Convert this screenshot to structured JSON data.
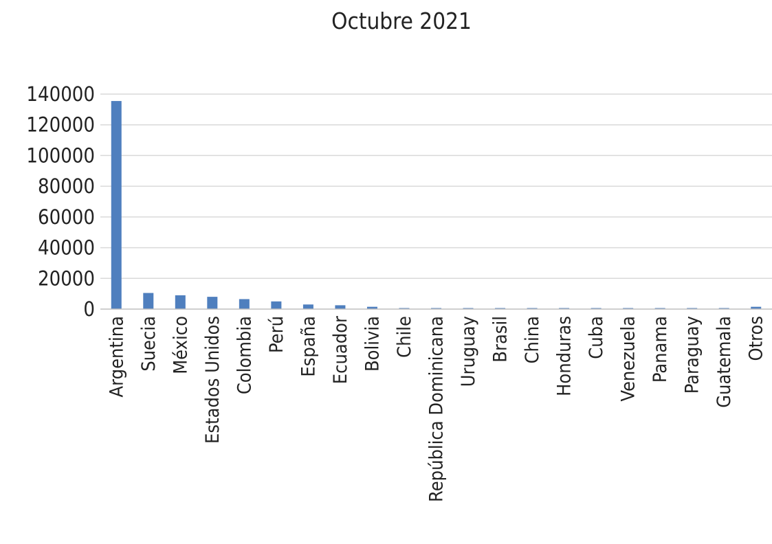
{
  "chart_data": {
    "type": "bar",
    "title": "Octubre 2021",
    "xlabel": "",
    "ylabel": "",
    "ylim": [
      0,
      140000
    ],
    "yticks": [
      0,
      20000,
      40000,
      60000,
      80000,
      100000,
      120000,
      140000
    ],
    "grid": true,
    "legend": "none",
    "bar_color": "#4f7fbe",
    "categories": [
      "Argentina",
      "Suecia",
      "México",
      "Estados Unidos",
      "Colombia",
      "Perú",
      "España",
      "Ecuador",
      "Bolivia",
      "Chile",
      "República Dominicana",
      "Uruguay",
      "Brasil",
      "China",
      "Honduras",
      "Cuba",
      "Venezuela",
      "Panama",
      "Paraguay",
      "Guatemala",
      "Otros"
    ],
    "values": [
      135500,
      10500,
      9000,
      8000,
      6500,
      5000,
      3000,
      2500,
      1500,
      600,
      500,
      400,
      300,
      200,
      150,
      150,
      150,
      100,
      100,
      100,
      1500
    ]
  }
}
